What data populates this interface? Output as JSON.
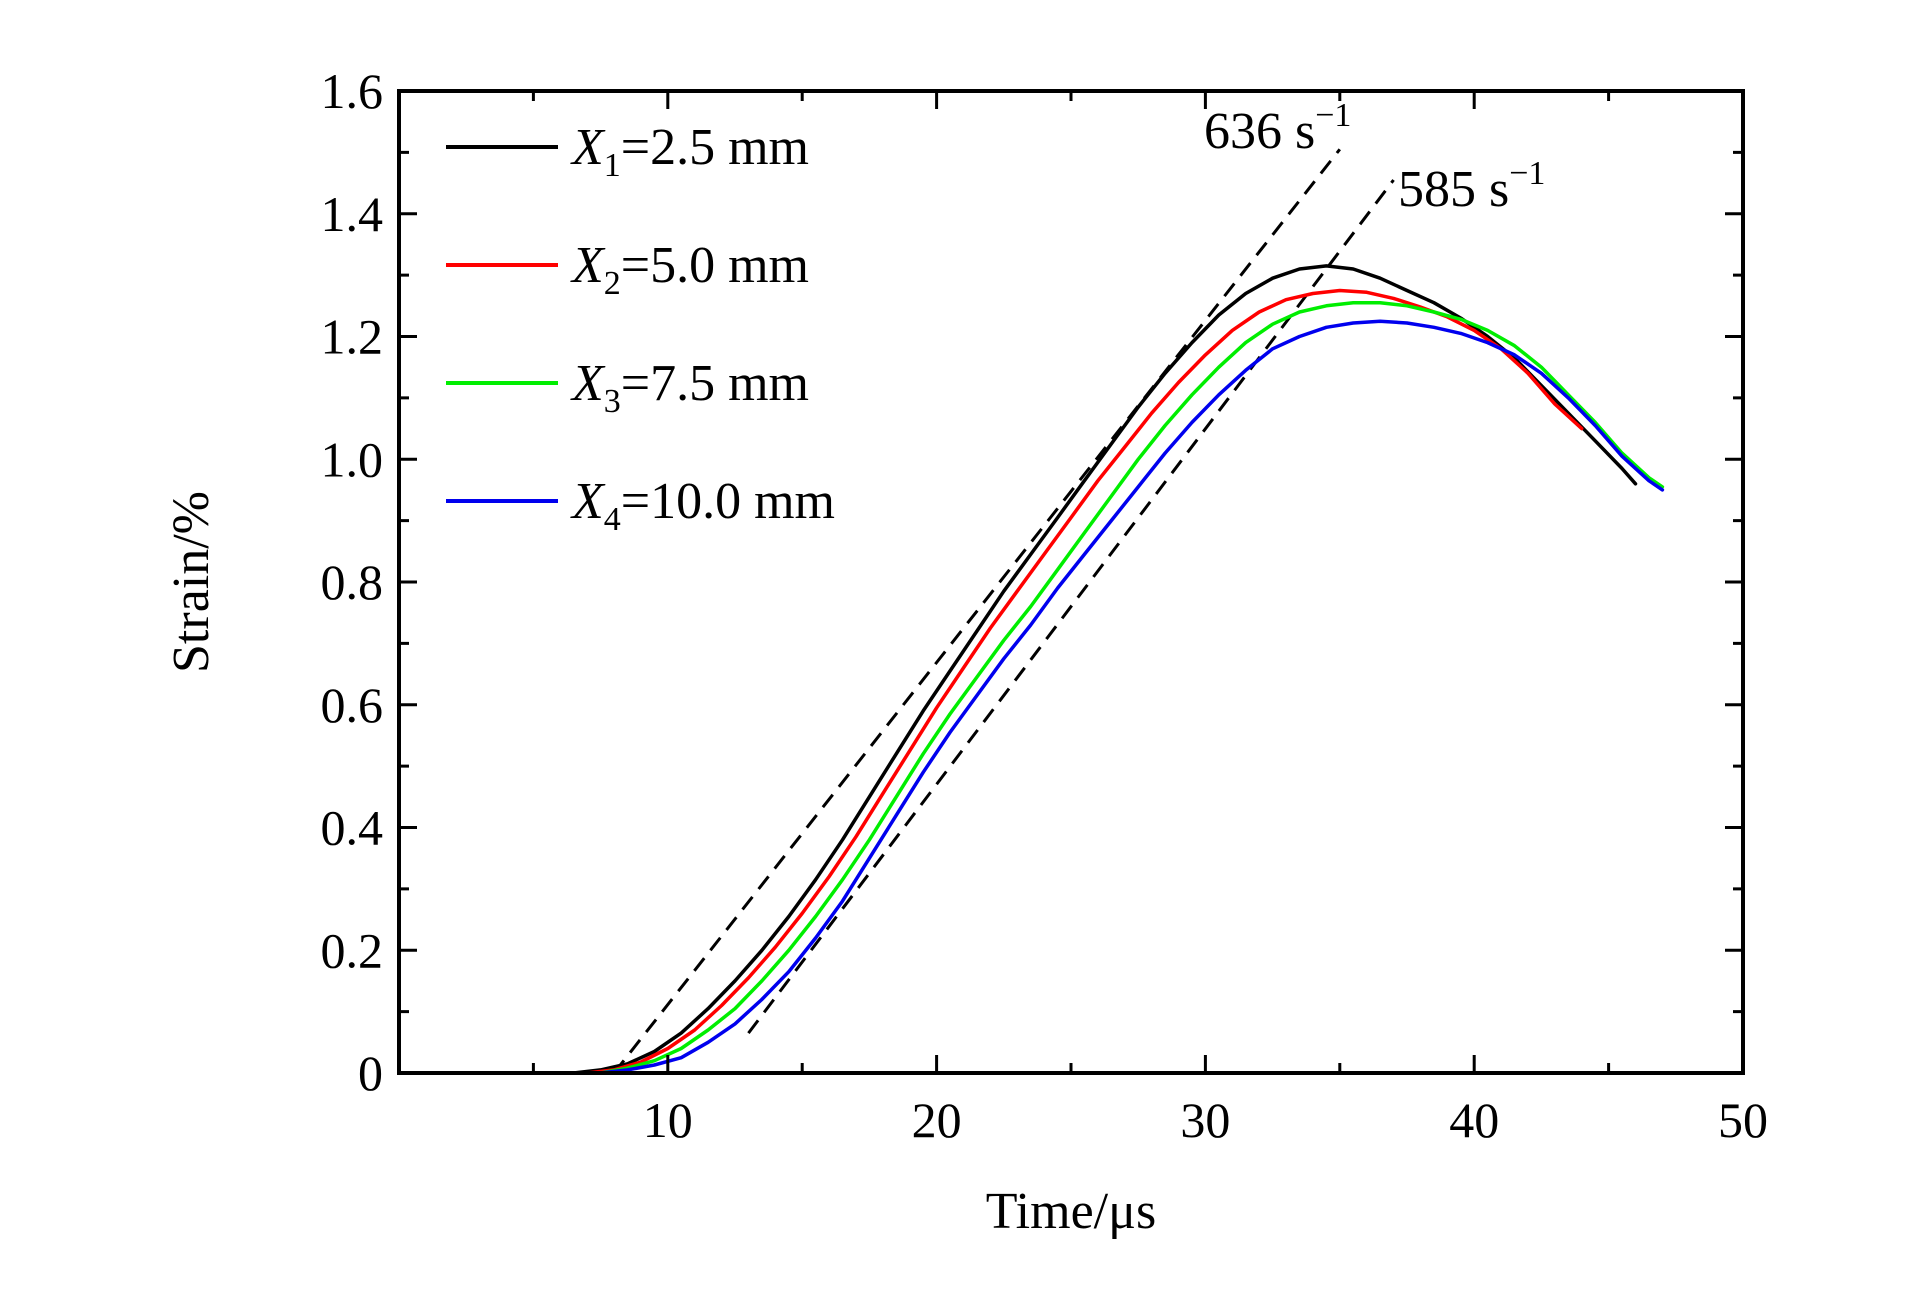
{
  "chart_data": {
    "type": "line",
    "xlabel": "Time/μs",
    "ylabel": "Strain/%",
    "xlim": [
      0,
      50
    ],
    "ylim": [
      0,
      1.6
    ],
    "x_ticks": [
      10,
      20,
      30,
      40,
      50
    ],
    "x_tick_labels": [
      "10",
      "20",
      "30",
      "40",
      "50"
    ],
    "x_minor_ticks": [
      5,
      15,
      25,
      35,
      45
    ],
    "y_ticks": [
      0,
      0.2,
      0.4,
      0.6,
      0.8,
      1.0,
      1.2,
      1.4,
      1.6
    ],
    "y_tick_labels": [
      "0",
      "0.2",
      "0.4",
      "0.6",
      "0.8",
      "1.0",
      "1.2",
      "1.4",
      "1.6"
    ],
    "y_minor_ticks": [
      0.1,
      0.3,
      0.5,
      0.7,
      0.9,
      1.1,
      1.3,
      1.5
    ],
    "grid": false,
    "legend_position": "top-left",
    "series": [
      {
        "var": "X",
        "sub": "1",
        "rest": "=2.5 mm",
        "color": "#000000",
        "x": [
          6.5,
          7.5,
          8.5,
          9.5,
          10.5,
          11.5,
          12.5,
          13.5,
          14.5,
          15.5,
          16.5,
          17.5,
          18.5,
          19.5,
          20.5,
          21.5,
          22.5,
          23.5,
          24.5,
          25.5,
          26.5,
          27.5,
          28.5,
          29.5,
          30.5,
          31.5,
          32.5,
          33.5,
          34.5,
          35.5,
          36.5,
          37.5,
          38.5,
          39.5,
          40.5,
          41.5,
          42.5,
          43.5,
          44.5,
          45.5,
          46.0
        ],
        "y": [
          0.0,
          0.005,
          0.015,
          0.035,
          0.065,
          0.105,
          0.15,
          0.2,
          0.255,
          0.315,
          0.38,
          0.45,
          0.52,
          0.59,
          0.655,
          0.72,
          0.785,
          0.845,
          0.905,
          0.965,
          1.025,
          1.085,
          1.14,
          1.19,
          1.235,
          1.27,
          1.295,
          1.31,
          1.315,
          1.31,
          1.295,
          1.275,
          1.255,
          1.23,
          1.2,
          1.165,
          1.12,
          1.075,
          1.03,
          0.985,
          0.96
        ]
      },
      {
        "var": "X",
        "sub": "2",
        "rest": "=5.0 mm",
        "color": "#ff0000",
        "x": [
          7.0,
          8.0,
          9.0,
          10.0,
          11.0,
          12.0,
          13.0,
          14.0,
          15.0,
          16.0,
          17.0,
          18.0,
          19.0,
          20.0,
          21.0,
          22.0,
          23.0,
          24.0,
          25.0,
          26.0,
          27.0,
          28.0,
          29.0,
          30.0,
          31.0,
          32.0,
          33.0,
          34.0,
          35.0,
          36.0,
          37.0,
          38.0,
          39.0,
          40.0,
          41.0,
          42.0,
          43.0,
          44.0
        ],
        "y": [
          0.0,
          0.005,
          0.018,
          0.04,
          0.07,
          0.11,
          0.155,
          0.205,
          0.26,
          0.32,
          0.385,
          0.455,
          0.525,
          0.595,
          0.66,
          0.725,
          0.785,
          0.845,
          0.905,
          0.965,
          1.02,
          1.075,
          1.125,
          1.17,
          1.21,
          1.24,
          1.26,
          1.27,
          1.275,
          1.272,
          1.262,
          1.248,
          1.232,
          1.21,
          1.18,
          1.14,
          1.09,
          1.05
        ]
      },
      {
        "var": "X",
        "sub": "3",
        "rest": "=7.5 mm",
        "color": "#00ee00",
        "x": [
          7.5,
          8.5,
          9.5,
          10.5,
          11.5,
          12.5,
          13.5,
          14.5,
          15.5,
          16.5,
          17.5,
          18.5,
          19.5,
          20.5,
          21.5,
          22.5,
          23.5,
          24.5,
          25.5,
          26.5,
          27.5,
          28.5,
          29.5,
          30.5,
          31.5,
          32.5,
          33.5,
          34.5,
          35.5,
          36.5,
          37.5,
          38.5,
          39.5,
          40.5,
          41.5,
          42.5,
          43.5,
          44.5,
          45.5,
          46.5,
          47.0
        ],
        "y": [
          0.0,
          0.008,
          0.02,
          0.04,
          0.07,
          0.105,
          0.15,
          0.2,
          0.255,
          0.315,
          0.38,
          0.45,
          0.52,
          0.585,
          0.645,
          0.705,
          0.76,
          0.82,
          0.88,
          0.94,
          1.0,
          1.055,
          1.105,
          1.15,
          1.19,
          1.22,
          1.24,
          1.25,
          1.255,
          1.255,
          1.25,
          1.24,
          1.228,
          1.21,
          1.185,
          1.15,
          1.105,
          1.06,
          1.01,
          0.97,
          0.955
        ]
      },
      {
        "var": "X",
        "sub": "4",
        "rest": "=10.0 mm",
        "color": "#0000ee",
        "x": [
          7.5,
          8.5,
          9.5,
          10.5,
          11.5,
          12.5,
          13.5,
          14.5,
          15.5,
          16.5,
          17.5,
          18.5,
          19.5,
          20.5,
          21.5,
          22.5,
          23.5,
          24.5,
          25.5,
          26.5,
          27.5,
          28.5,
          29.5,
          30.5,
          31.5,
          32.5,
          33.5,
          34.5,
          35.5,
          36.5,
          37.5,
          38.5,
          39.5,
          40.5,
          41.5,
          42.5,
          43.5,
          44.5,
          45.5,
          46.5,
          47.0
        ],
        "y": [
          0.0,
          0.005,
          0.013,
          0.025,
          0.05,
          0.08,
          0.12,
          0.165,
          0.22,
          0.28,
          0.35,
          0.42,
          0.49,
          0.555,
          0.615,
          0.675,
          0.73,
          0.79,
          0.845,
          0.9,
          0.955,
          1.01,
          1.06,
          1.105,
          1.145,
          1.18,
          1.2,
          1.215,
          1.222,
          1.225,
          1.222,
          1.215,
          1.205,
          1.19,
          1.17,
          1.14,
          1.1,
          1.055,
          1.005,
          0.965,
          0.95
        ]
      }
    ],
    "reference_lines": [
      {
        "label_value": "636 s",
        "label_sup": "−1",
        "x": [
          8.0,
          35.0
        ],
        "y": [
          0.0,
          1.505
        ],
        "dash": true
      },
      {
        "label_value": "585 s",
        "label_sup": "−1",
        "x": [
          13.0,
          37.0
        ],
        "y": [
          0.065,
          1.455
        ],
        "dash": true
      }
    ]
  }
}
